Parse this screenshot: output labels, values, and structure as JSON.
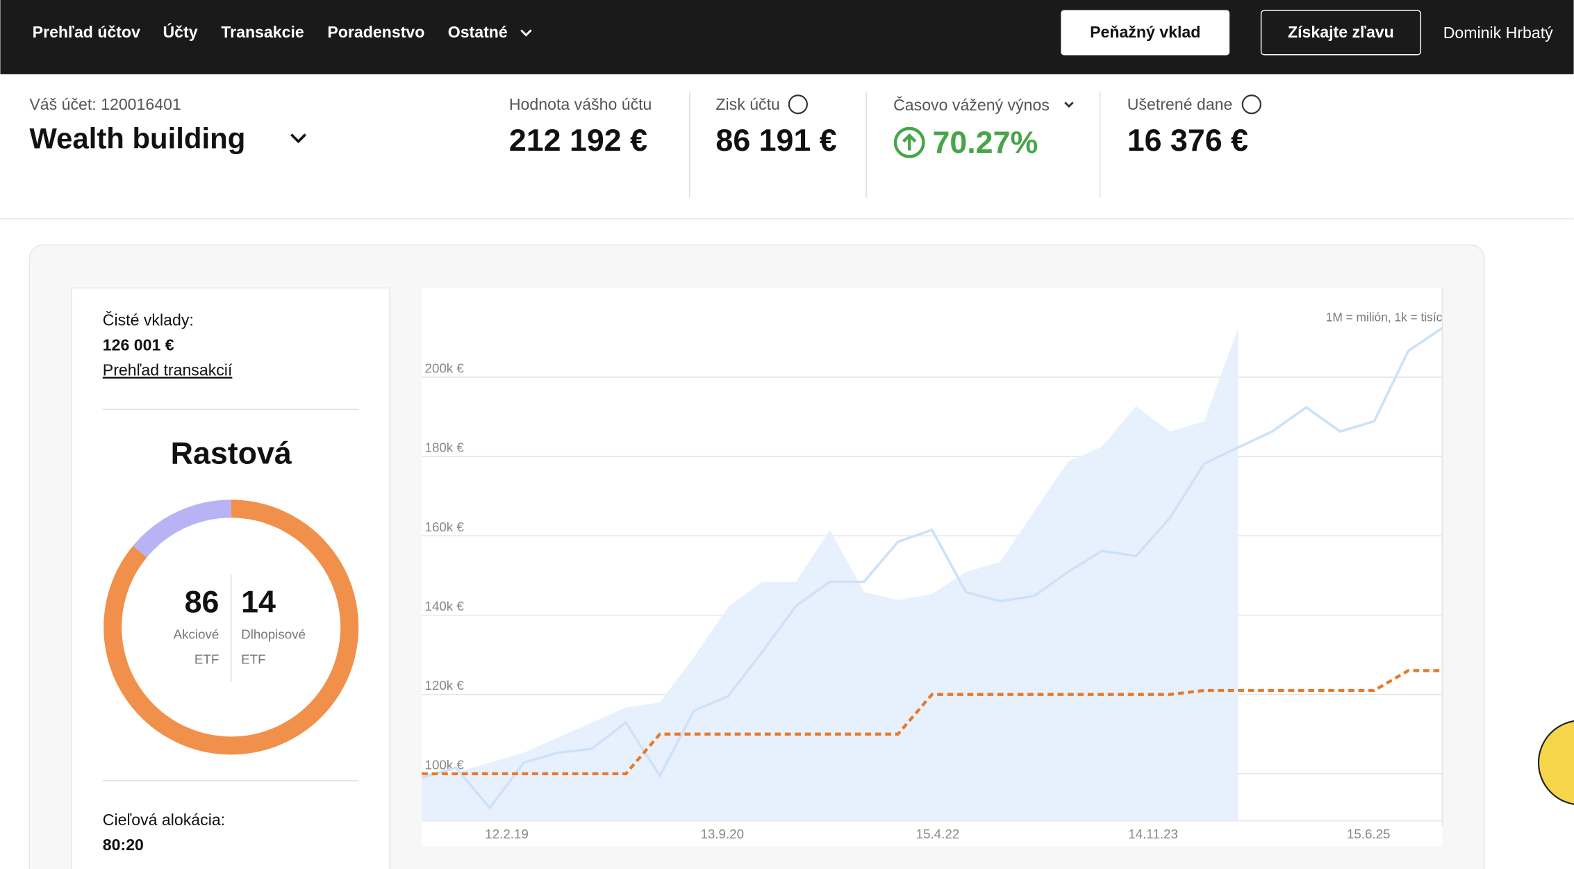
{
  "nav": {
    "items": [
      "Prehľad účtov",
      "Účty",
      "Transakcie",
      "Poradenstvo",
      "Ostatné"
    ],
    "deposit_button": "Peňažný vklad",
    "discount_button": "Získajte zľavu",
    "user": "Dominik Hrbatý"
  },
  "account": {
    "number_label": "Váš účet: 120016401",
    "name": "Wealth building"
  },
  "stats": [
    {
      "label": "Hodnota vášho účtu",
      "value": "212 192 €"
    },
    {
      "label": "Zisk účtu",
      "value": "86 191 €"
    },
    {
      "label": "Časovo vážený výnos",
      "value": "70.27%"
    },
    {
      "label": "Ušetrené dane",
      "value": "16 376 €"
    }
  ],
  "summary_card": {
    "net_deposits_label": "Čisté vklady:",
    "net_deposits": "126 001 €",
    "transactions_link": "Prehľad transakcií",
    "strategy": "Rastová",
    "target_label": "Cieľová alokácia:",
    "target": "80:20"
  },
  "allocation": {
    "type": "pie",
    "categories": [
      [
        "Akciové",
        "ETF"
      ],
      [
        "Dlhopisové",
        "ETF"
      ]
    ],
    "values": [
      86,
      14
    ],
    "colors": [
      "#f0904a",
      "#b9b3f5"
    ]
  },
  "chart_data": {
    "type": "line",
    "annotation": "1M = milión, 1k = tisíc",
    "x": [
      0,
      3,
      6,
      9,
      12,
      15,
      18,
      21,
      24,
      27,
      30,
      33,
      36,
      39,
      42,
      45,
      48,
      51,
      54,
      57,
      60,
      63,
      66,
      69,
      72,
      75,
      78,
      81,
      84,
      87,
      90
    ],
    "xlim": [
      0,
      90
    ],
    "xticks": [
      {
        "value": 7.5,
        "label": "12.2.19"
      },
      {
        "value": 26.5,
        "label": "13.9.20"
      },
      {
        "value": 45.5,
        "label": "15.4.22"
      },
      {
        "value": 64.5,
        "label": "14.11.23"
      },
      {
        "value": 83.5,
        "label": "15.6.25"
      }
    ],
    "ylim": [
      81800,
      222500
    ],
    "yticks": [
      {
        "value": 100000,
        "label": "100k €"
      },
      {
        "value": 120000,
        "label": "120k €"
      },
      {
        "value": 140000,
        "label": "140k €"
      },
      {
        "value": 160000,
        "label": "160k €"
      },
      {
        "value": 180000,
        "label": "180k €"
      },
      {
        "value": 200000,
        "label": "200k €"
      }
    ],
    "grid": true,
    "series": [
      {
        "kind": "area",
        "color": "#e7f1fd",
        "values": [
          100300,
          100300,
          102800,
          105300,
          109100,
          112900,
          116700,
          118000,
          129400,
          142000,
          148400,
          148400,
          161500,
          145800,
          143800,
          145300,
          150900,
          153400,
          166100,
          178700,
          182500,
          192700,
          186300,
          188900,
          212400,
          null,
          null,
          null,
          null,
          null,
          null
        ]
      },
      {
        "kind": "line",
        "color": "#cde2f8",
        "values": [
          99000,
          101500,
          91400,
          102800,
          105300,
          106300,
          112900,
          99500,
          115900,
          119500,
          130600,
          142300,
          148400,
          148400,
          158500,
          161500,
          145800,
          143500,
          144800,
          150900,
          156200,
          154900,
          164600,
          178200,
          182300,
          186300,
          192400,
          186300,
          188900,
          206600,
          212400
        ]
      },
      {
        "kind": "dashed",
        "color": "#e8792a",
        "values": [
          100000,
          100000,
          100000,
          100000,
          100000,
          100000,
          100000,
          110000,
          110000,
          110000,
          110000,
          110000,
          110000,
          110000,
          110000,
          120000,
          120000,
          120000,
          120000,
          120000,
          120000,
          120000,
          120000,
          121000,
          121000,
          121000,
          121000,
          121000,
          121000,
          126000,
          126000
        ]
      }
    ]
  }
}
